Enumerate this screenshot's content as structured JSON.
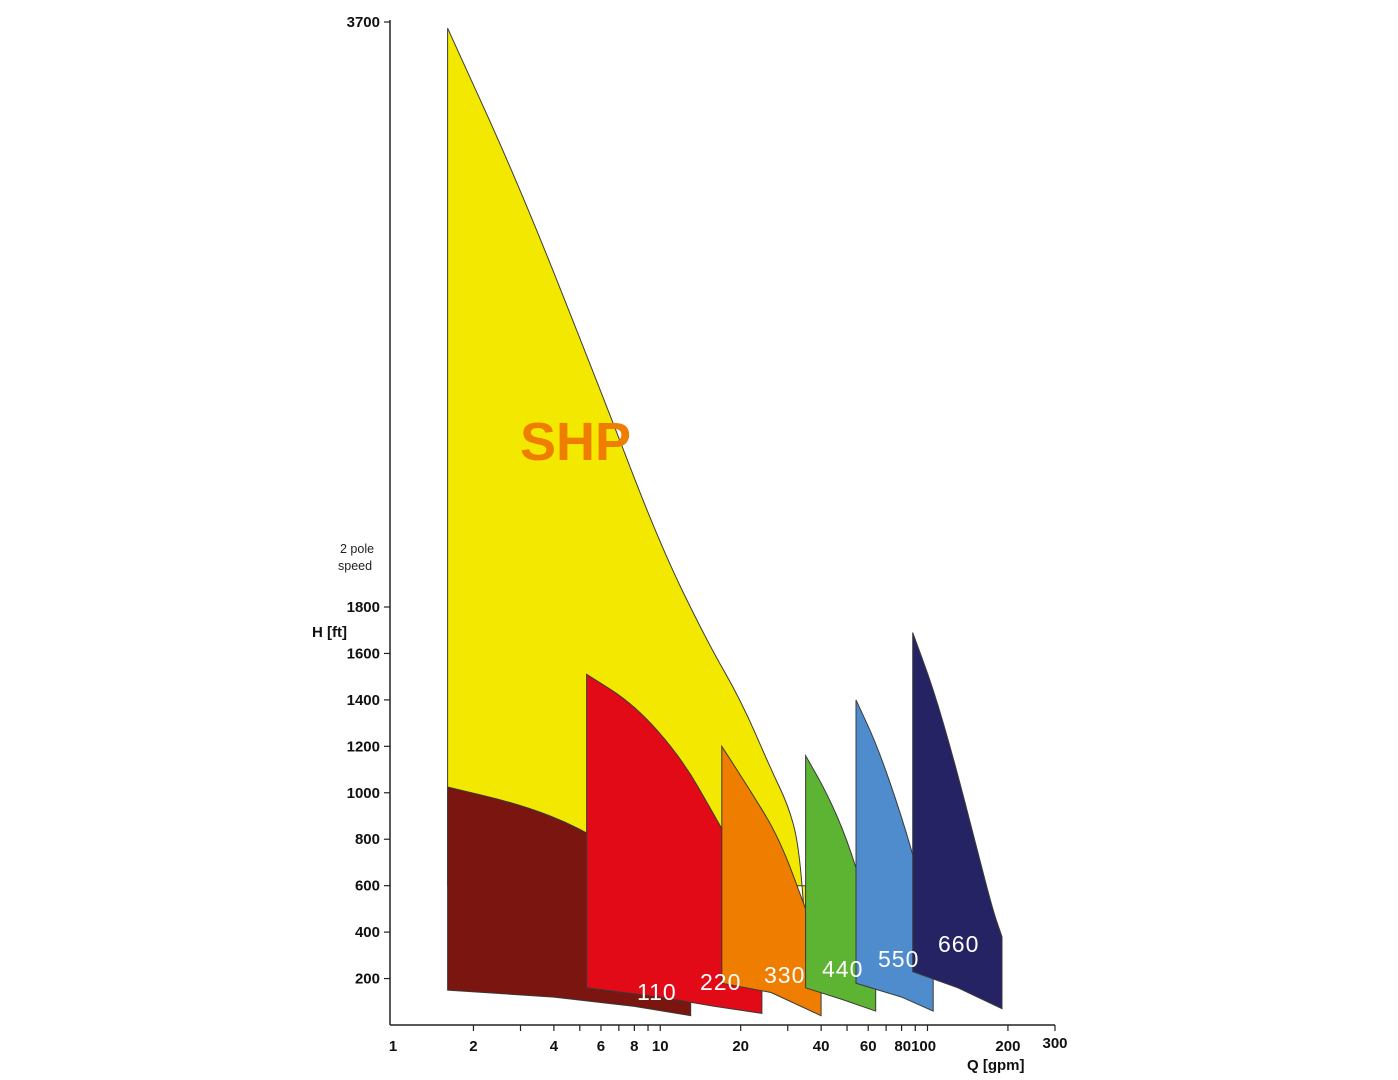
{
  "chart_data": {
    "type": "area",
    "x_scale": "log",
    "xlim": [
      1,
      300
    ],
    "xticks": [
      "1",
      "2",
      "4",
      "6",
      "8",
      "10",
      "20",
      "40",
      "60",
      "80100",
      "200",
      "300"
    ],
    "xlabel": "Q [gpm]",
    "ylabel": "H [ft]",
    "yticks": [
      "200",
      "400",
      "600",
      "800",
      "1000",
      "1200",
      "1400",
      "1600",
      "1800",
      "3700"
    ],
    "y_note": "2 pole\nspeed",
    "series": [
      {
        "name": "SHP",
        "color": "#f3e900",
        "label_color": "#ef7d00",
        "q_min": 1.6,
        "q_max": 35,
        "h_top": [
          [
            1.6,
            3680
          ],
          [
            3,
            3160
          ],
          [
            6,
            2500
          ],
          [
            10,
            2000
          ],
          [
            15,
            1650
          ],
          [
            20,
            1400
          ],
          [
            26,
            1100
          ],
          [
            30,
            950
          ],
          [
            33,
            780
          ],
          [
            35,
            400
          ]
        ],
        "h_bottom": [
          [
            1.6,
            600
          ],
          [
            35,
            600
          ]
        ]
      },
      {
        "name": "110",
        "color": "#7a1510",
        "q_min": 1.6,
        "q_max": 13,
        "h_top": [
          [
            1.6,
            1025
          ],
          [
            3,
            950
          ],
          [
            5,
            850
          ],
          [
            8,
            700
          ],
          [
            11,
            520
          ],
          [
            13,
            350
          ]
        ],
        "h_bottom": [
          [
            1.6,
            150
          ],
          [
            4,
            120
          ],
          [
            8,
            80
          ],
          [
            13,
            40
          ]
        ]
      },
      {
        "name": "220",
        "color": "#e20a17",
        "q_min": 5.3,
        "q_max": 24,
        "h_top": [
          [
            5.3,
            1510
          ],
          [
            8,
            1380
          ],
          [
            12,
            1150
          ],
          [
            16,
            900
          ],
          [
            20,
            700
          ],
          [
            24,
            360
          ]
        ],
        "h_bottom": [
          [
            5.3,
            160
          ],
          [
            10,
            120
          ],
          [
            16,
            80
          ],
          [
            24,
            50
          ]
        ]
      },
      {
        "name": "330",
        "color": "#ef7d00",
        "q_min": 17,
        "q_max": 40,
        "h_top": [
          [
            17,
            1200
          ],
          [
            22,
            1000
          ],
          [
            28,
            800
          ],
          [
            35,
            500
          ],
          [
            40,
            320
          ]
        ],
        "h_bottom": [
          [
            17,
            180
          ],
          [
            26,
            140
          ],
          [
            40,
            40
          ]
        ]
      },
      {
        "name": "440",
        "color": "#5db332",
        "q_min": 35,
        "q_max": 64,
        "h_top": [
          [
            35,
            1160
          ],
          [
            42,
            1000
          ],
          [
            50,
            800
          ],
          [
            58,
            560
          ],
          [
            64,
            380
          ]
        ],
        "h_bottom": [
          [
            35,
            160
          ],
          [
            48,
            110
          ],
          [
            64,
            60
          ]
        ]
      },
      {
        "name": "550",
        "color": "#4e8ccd",
        "q_min": 54,
        "q_max": 105,
        "h_top": [
          [
            54,
            1400
          ],
          [
            65,
            1200
          ],
          [
            80,
            900
          ],
          [
            95,
            600
          ],
          [
            105,
            400
          ]
        ],
        "h_bottom": [
          [
            54,
            180
          ],
          [
            80,
            120
          ],
          [
            105,
            60
          ]
        ]
      },
      {
        "name": "660",
        "color": "#252364",
        "q_min": 88,
        "q_max": 190,
        "h_top": [
          [
            88,
            1690
          ],
          [
            105,
            1450
          ],
          [
            125,
            1150
          ],
          [
            150,
            800
          ],
          [
            175,
            500
          ],
          [
            190,
            380
          ]
        ],
        "h_bottom": [
          [
            88,
            230
          ],
          [
            130,
            160
          ],
          [
            190,
            70
          ]
        ]
      }
    ]
  }
}
